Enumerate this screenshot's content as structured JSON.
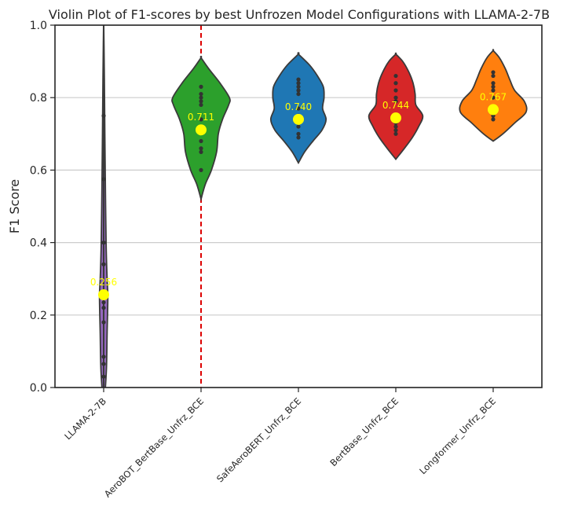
{
  "chart_data": {
    "type": "violin",
    "title": "Violin Plot of F1-scores by best Unfrozen Model Configurations with LLAMA-2-7B",
    "xlabel": "",
    "ylabel": "F1 Score",
    "ylim": [
      0.0,
      1.0
    ],
    "yticks": [
      "0.0",
      "0.2",
      "0.4",
      "0.6",
      "0.8",
      "1.0"
    ],
    "grid": "horizontal",
    "reference_line": {
      "category": "AeroBOT_BertBase_Unfrz_BCE",
      "style": "dashed",
      "color": "#dd0000"
    },
    "categories": [
      "LLAMA-2-7B",
      "AeroBOT_BertBase_Unfrz_BCE",
      "SafeAeroBERT_Unfrz_BCE",
      "BertBase_Unfrz_BCE",
      "Longformer_Unfrz_BCE"
    ],
    "colors": [
      "#9467bd",
      "#2ca02c",
      "#1f77b4",
      "#d62728",
      "#ff7f0e"
    ],
    "means": [
      0.256,
      0.711,
      0.74,
      0.744,
      0.767
    ],
    "mean_labels": [
      "0.256",
      "0.711",
      "0.740",
      "0.744",
      "0.767"
    ],
    "points": [
      [
        0.03,
        0.065,
        0.085,
        0.18,
        0.22,
        0.235,
        0.34,
        0.4,
        0.575,
        0.75
      ],
      [
        0.6,
        0.65,
        0.66,
        0.68,
        0.74,
        0.78,
        0.79,
        0.8,
        0.81,
        0.83
      ],
      [
        0.69,
        0.7,
        0.72,
        0.75,
        0.77,
        0.81,
        0.82,
        0.83,
        0.84,
        0.85
      ],
      [
        0.7,
        0.71,
        0.72,
        0.73,
        0.75,
        0.79,
        0.8,
        0.82,
        0.84,
        0.86
      ],
      [
        0.74,
        0.75,
        0.76,
        0.77,
        0.8,
        0.82,
        0.83,
        0.84,
        0.86,
        0.87
      ]
    ],
    "density": [
      {
        "y_range": [
          -0.15,
          1.0
        ],
        "width_profile": [
          [
            -0.15,
            0
          ],
          [
            -0.05,
            0.02
          ],
          [
            0.05,
            0.08
          ],
          [
            0.15,
            0.1
          ],
          [
            0.25,
            0.12
          ],
          [
            0.3,
            0.1
          ],
          [
            0.4,
            0.07
          ],
          [
            0.55,
            0.05
          ],
          [
            0.7,
            0.035
          ],
          [
            0.85,
            0.02
          ],
          [
            0.95,
            0.008
          ],
          [
            1.0,
            0.002
          ]
        ]
      },
      {
        "y_range": [
          0.52,
          0.91
        ],
        "width_profile": [
          [
            0.52,
            0
          ],
          [
            0.56,
            0.12
          ],
          [
            0.6,
            0.3
          ],
          [
            0.65,
            0.45
          ],
          [
            0.7,
            0.5
          ],
          [
            0.74,
            0.62
          ],
          [
            0.78,
            0.8
          ],
          [
            0.8,
            0.82
          ],
          [
            0.84,
            0.55
          ],
          [
            0.88,
            0.22
          ],
          [
            0.91,
            0
          ]
        ]
      },
      {
        "y_range": [
          0.62,
          0.92
        ],
        "width_profile": [
          [
            0.62,
            0
          ],
          [
            0.65,
            0.18
          ],
          [
            0.68,
            0.42
          ],
          [
            0.71,
            0.68
          ],
          [
            0.74,
            0.8
          ],
          [
            0.77,
            0.7
          ],
          [
            0.8,
            0.74
          ],
          [
            0.83,
            0.72
          ],
          [
            0.86,
            0.55
          ],
          [
            0.89,
            0.32
          ],
          [
            0.92,
            0
          ]
        ]
      },
      {
        "y_range": [
          0.63,
          0.92
        ],
        "width_profile": [
          [
            0.63,
            0
          ],
          [
            0.66,
            0.25
          ],
          [
            0.69,
            0.48
          ],
          [
            0.72,
            0.66
          ],
          [
            0.75,
            0.78
          ],
          [
            0.78,
            0.58
          ],
          [
            0.81,
            0.56
          ],
          [
            0.84,
            0.5
          ],
          [
            0.87,
            0.38
          ],
          [
            0.9,
            0.2
          ],
          [
            0.92,
            0
          ]
        ]
      },
      {
        "y_range": [
          0.68,
          0.93
        ],
        "width_profile": [
          [
            0.68,
            0
          ],
          [
            0.7,
            0.28
          ],
          [
            0.73,
            0.62
          ],
          [
            0.76,
            0.95
          ],
          [
            0.79,
            0.9
          ],
          [
            0.82,
            0.62
          ],
          [
            0.85,
            0.48
          ],
          [
            0.88,
            0.35
          ],
          [
            0.91,
            0.18
          ],
          [
            0.93,
            0
          ]
        ]
      }
    ]
  }
}
